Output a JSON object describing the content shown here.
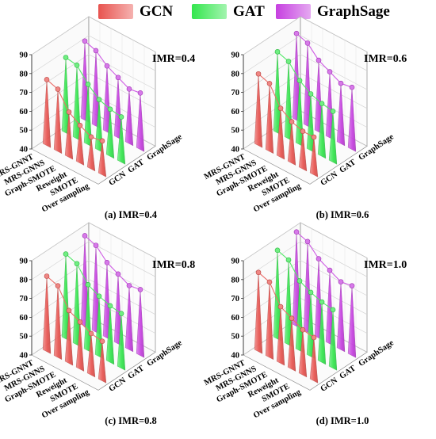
{
  "legend": [
    {
      "label": "GCN",
      "color": "#e8534f"
    },
    {
      "label": "GAT",
      "color": "#33e64d"
    },
    {
      "label": "GraphSage",
      "color": "#c640e0"
    }
  ],
  "chart_data": [
    {
      "type": "3d-bar",
      "caption": "(a) IMR=0.4",
      "annotation": "IMR=0.4",
      "categories": [
        "MRS-GNNT",
        "MRS-GNNS",
        "Graph-SMOTE",
        "Reweight",
        "SMOTE",
        "Over sampling"
      ],
      "depth_categories": [
        "GCN",
        "GAT",
        "GraphSage"
      ],
      "zlim": [
        40,
        90
      ],
      "zticks": [
        40,
        50,
        60,
        70,
        80,
        90
      ],
      "series": [
        {
          "name": "GCN",
          "values": [
            75,
            73,
            64,
            60,
            57,
            58
          ]
        },
        {
          "name": "GAT",
          "values": [
            80,
            79,
            72,
            67,
            65,
            64
          ]
        },
        {
          "name": "GraphSage",
          "values": [
            82,
            80,
            75,
            72,
            69,
            70
          ]
        }
      ]
    },
    {
      "type": "3d-bar",
      "caption": "(b) IMR=0.6",
      "annotation": "IMR=0.6",
      "categories": [
        "MRS-GNNT",
        "MRS-GNNS",
        "Graph-SMOTE",
        "Reweight",
        "SMOTE",
        "Over sampling"
      ],
      "depth_categories": [
        "GCN",
        "GAT",
        "GraphSage"
      ],
      "zlim": [
        40,
        90
      ],
      "zticks": [
        40,
        50,
        60,
        70,
        80,
        90
      ],
      "series": [
        {
          "name": "GCN",
          "values": [
            78,
            76,
            66,
            62,
            60,
            60
          ]
        },
        {
          "name": "GAT",
          "values": [
            83,
            81,
            74,
            70,
            68,
            67
          ]
        },
        {
          "name": "GraphSage",
          "values": [
            86,
            84,
            78,
            75,
            72,
            73
          ]
        }
      ]
    },
    {
      "type": "3d-bar",
      "caption": "(c) IMR=0.8",
      "annotation": "IMR=0.8",
      "categories": [
        "MRS-GNNT",
        "MRS-GNNS",
        "Graph-SMOTE",
        "Reweight",
        "SMOTE",
        "Over sampling"
      ],
      "depth_categories": [
        "GCN",
        "GAT",
        "GraphSage"
      ],
      "zlim": [
        40,
        90
      ],
      "zticks": [
        40,
        50,
        60,
        70,
        80,
        90
      ],
      "series": [
        {
          "name": "GCN",
          "values": [
            80,
            78,
            68,
            65,
            62,
            61
          ]
        },
        {
          "name": "GAT",
          "values": [
            85,
            83,
            75,
            72,
            70,
            69
          ]
        },
        {
          "name": "GraphSage",
          "values": [
            88,
            86,
            80,
            77,
            74,
            75
          ]
        }
      ]
    },
    {
      "type": "3d-bar",
      "caption": "(d) IMR=1.0",
      "annotation": "IMR=1.0",
      "categories": [
        "MRS-GNNT",
        "MRS-GNNS",
        "Graph-SMOTE",
        "Reweight",
        "SMOTE",
        "Over sampling"
      ],
      "depth_categories": [
        "GCN",
        "GAT",
        "GraphSage"
      ],
      "zlim": [
        40,
        90
      ],
      "zticks": [
        40,
        50,
        60,
        70,
        80,
        90
      ],
      "series": [
        {
          "name": "GCN",
          "values": [
            82,
            80,
            70,
            67,
            64,
            63
          ]
        },
        {
          "name": "GAT",
          "values": [
            87,
            85,
            77,
            74,
            72,
            71
          ]
        },
        {
          "name": "GraphSage",
          "values": [
            90,
            88,
            82,
            79,
            76,
            77
          ]
        }
      ]
    }
  ]
}
